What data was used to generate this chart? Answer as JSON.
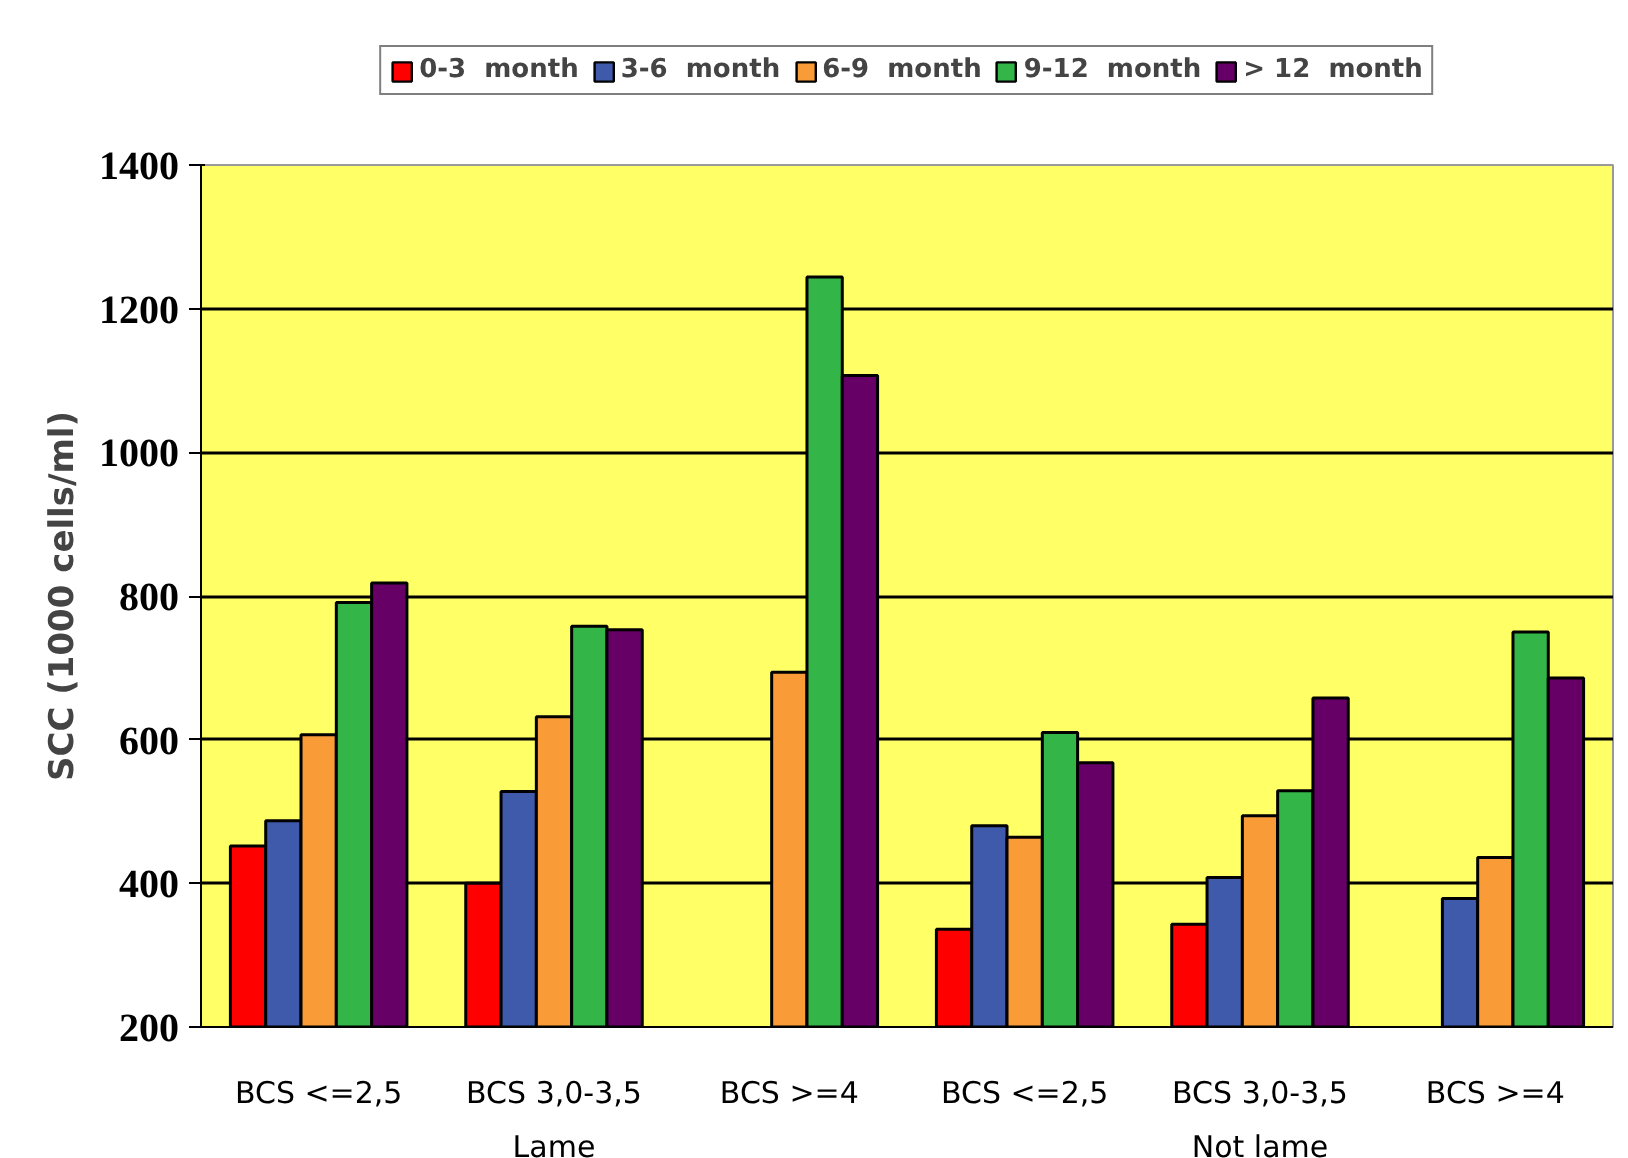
{
  "chart_data": {
    "type": "bar",
    "ylabel": "SCC (1000 cells/ml)",
    "categories": [
      "BCS <=2,5",
      "BCS 3,0-3,5",
      "BCS >=4",
      "BCS <=2,5",
      "BCS 3,0-3,5",
      "BCS >=4"
    ],
    "series": [
      {
        "name": "0-3  month",
        "color": "#ff0000",
        "values": [
          452,
          400,
          null,
          336,
          343,
          null
        ]
      },
      {
        "name": "3-6  month",
        "color": "#3f59ab",
        "values": [
          487,
          528,
          null,
          480,
          408,
          379
        ]
      },
      {
        "name": "6-9  month",
        "color": "#f99c38",
        "values": [
          607,
          632,
          694,
          464,
          494,
          436
        ]
      },
      {
        "name": "9-12  month",
        "color": "#33b548",
        "values": [
          791,
          758,
          1244,
          610,
          529,
          750
        ]
      },
      {
        "name": "> 12  month",
        "color": "#660066",
        "values": [
          818,
          753,
          1107,
          568,
          658,
          686
        ]
      }
    ],
    "ylim": [
      200,
      1400
    ],
    "yticks": [
      200,
      400,
      600,
      800,
      1000,
      1200,
      1400
    ],
    "grid": "y",
    "legend": "top",
    "annotations": [
      "Lame",
      "Not lame"
    ]
  }
}
